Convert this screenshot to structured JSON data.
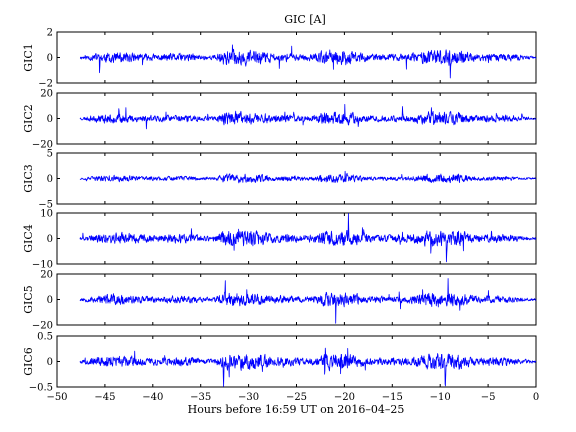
{
  "chart_data": {
    "type": "line",
    "title": "GIC [A]",
    "xlabel": "Hours before  16:59 UT on 2016–04–25",
    "xlim": [
      -50,
      0
    ],
    "xticks": [
      -50,
      -45,
      -40,
      -35,
      -30,
      -25,
      -20,
      -15,
      -10,
      -5,
      0
    ],
    "xtick_labels": [
      "−50",
      "−45",
      "−40",
      "−35",
      "−30",
      "−25",
      "−20",
      "−15",
      "−10",
      "−5",
      "0"
    ],
    "series_color": "#0000ff",
    "data_start_hour": -47.6,
    "panels": [
      {
        "ylabel": "GIC1",
        "ylim": [
          -2,
          2
        ],
        "yticks": [
          -2,
          0,
          2
        ],
        "ytick_labels": [
          "−2",
          "0",
          "2"
        ],
        "peak": 1.7,
        "seed": 11
      },
      {
        "ylabel": "GIC2",
        "ylim": [
          -20,
          20
        ],
        "yticks": [
          -20,
          0,
          20
        ],
        "ytick_labels": [
          "−20",
          "0",
          "20"
        ],
        "peak": 15,
        "seed": 23
      },
      {
        "ylabel": "GIC3",
        "ylim": [
          -5,
          5
        ],
        "yticks": [
          -5,
          0,
          5
        ],
        "ytick_labels": [
          "−5",
          "0",
          "5"
        ],
        "peak": 2.5,
        "seed": 37
      },
      {
        "ylabel": "GIC4",
        "ylim": [
          -10,
          10
        ],
        "yticks": [
          -10,
          0,
          10
        ],
        "ytick_labels": [
          "−10",
          "0",
          "10"
        ],
        "peak": 9,
        "seed": 41
      },
      {
        "ylabel": "GIC5",
        "ylim": [
          -20,
          20
        ],
        "yticks": [
          -20,
          0,
          20
        ],
        "ytick_labels": [
          "−20",
          "0",
          "20"
        ],
        "peak": 16,
        "seed": 53
      },
      {
        "ylabel": "GIC6",
        "ylim": [
          -0.5,
          0.5
        ],
        "yticks": [
          -0.5,
          0,
          0.5
        ],
        "ytick_labels": [
          "−0.5",
          "0",
          "0.5"
        ],
        "peak": 0.45,
        "seed": 67
      }
    ],
    "grid": false,
    "legend": "none"
  }
}
